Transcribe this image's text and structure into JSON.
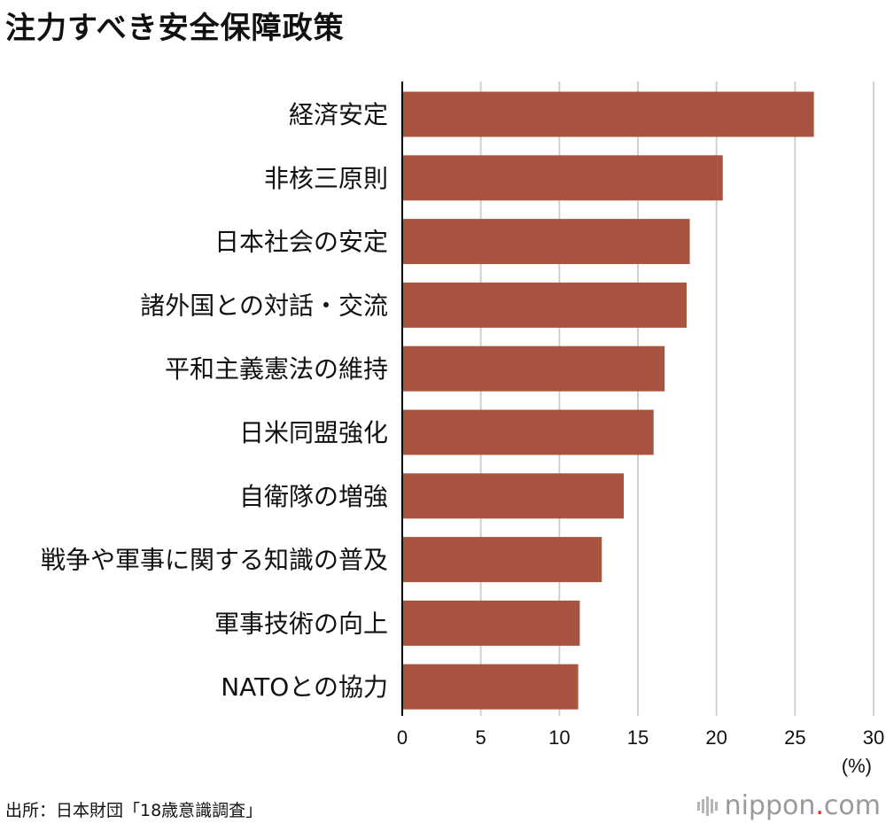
{
  "title": "注力すべき安全保障政策",
  "source": "出所：日本財団「18歳意識調査」",
  "logo": {
    "name": "nippon",
    "dot": ".",
    "tld": "com"
  },
  "colors": {
    "bar": "#a95440",
    "grid": "#d0d0d0",
    "axis": "#000000"
  },
  "chart_data": {
    "type": "bar",
    "orientation": "horizontal",
    "categories": [
      "経済安定",
      "非核三原則",
      "日本社会の安定",
      "諸外国との対話・交流",
      "平和主義憲法の維持",
      "日米同盟強化",
      "自衛隊の増強",
      "戦争や軍事に関する知識の普及",
      "軍事技術の向上",
      "NATOとの協力"
    ],
    "values": [
      26.2,
      20.4,
      18.3,
      18.1,
      16.7,
      16.0,
      14.1,
      12.7,
      11.3,
      11.2
    ],
    "xlim": [
      0,
      30
    ],
    "xticks": [
      0,
      5,
      10,
      15,
      20,
      25,
      30
    ],
    "unit": "(%)",
    "grid": true
  }
}
